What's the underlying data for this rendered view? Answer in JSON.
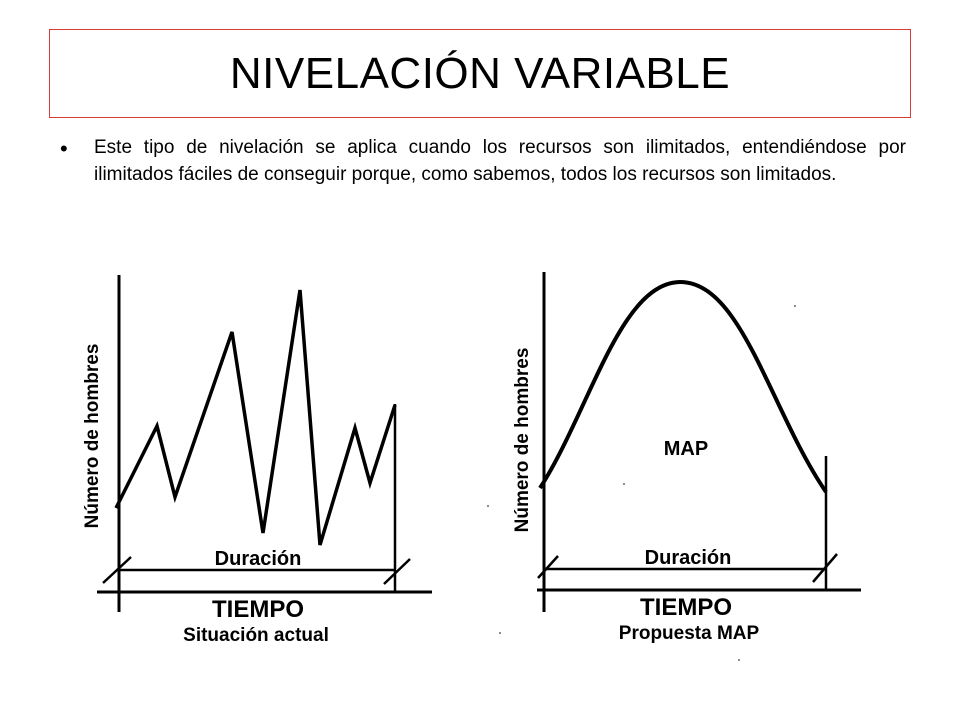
{
  "slide": {
    "title": "NIVELACIÓN VARIABLE",
    "bullet_symbol": "•",
    "body": "Este tipo de nivelación se aplica cuando los recursos son ilimitados, entendiéndose por ilimitados fáciles de conseguir porque, como sabemos, todos los recursos son limitados."
  },
  "left_diagram": {
    "ylabel": "Número de hombres",
    "duration_label": "Duración",
    "xlabel": "TIEMPO",
    "caption": "Situación actual"
  },
  "right_diagram": {
    "ylabel": "Número de hombres",
    "curve_label": "MAP",
    "duration_label": "Duración",
    "xlabel": "TIEMPO",
    "caption": "Propuesta MAP"
  }
}
